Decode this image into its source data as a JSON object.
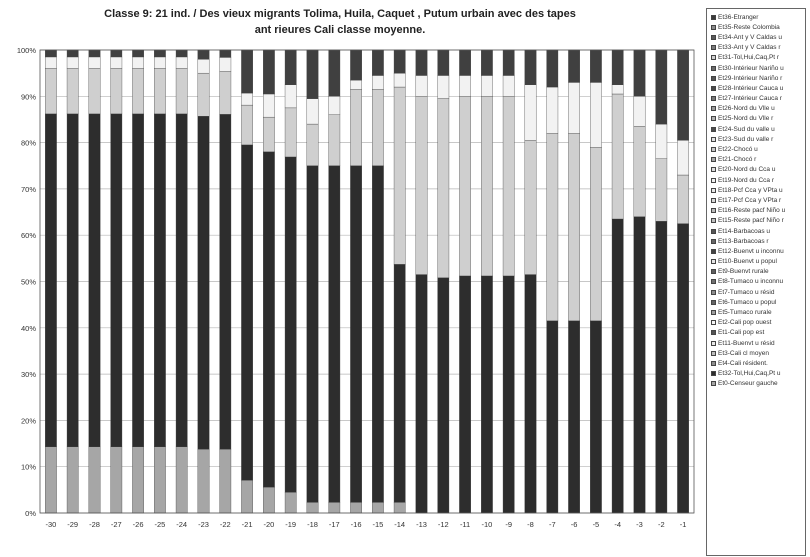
{
  "chart_data": {
    "type": "bar",
    "stacked": true,
    "normalized": true,
    "title_lines": [
      "Classe 9: 21 ind. / Des vieux migrants Tolima, Huila, Caquet , Putum urbain  avec des  tapes",
      "ant rieures   Cali classe moyenne."
    ],
    "xlabel": "",
    "ylabel": "",
    "yticks": [
      "0%",
      "10%",
      "20%",
      "30%",
      "40%",
      "50%",
      "60%",
      "70%",
      "80%",
      "90%",
      "100%"
    ],
    "ylim": [
      0,
      100
    ],
    "grid": true,
    "legend_position": "right",
    "categories": [
      "-30",
      "-29",
      "-28",
      "-27",
      "-26",
      "-25",
      "-24",
      "-23",
      "-22",
      "-21",
      "-20",
      "-19",
      "-18",
      "-17",
      "-16",
      "-15",
      "-14",
      "-13",
      "-12",
      "-11",
      "-10",
      "-9",
      "-8",
      "-7",
      "-6",
      "-5",
      "-4",
      "-3",
      "-2",
      "-1"
    ],
    "legend": [
      "Et36-Etranger",
      "Et35-Reste Colombia",
      "Et34-Ant y V Caldas u",
      "Et33-Ant y V Caldas r",
      "Et31-Tol,Hui,Caq,Pt r",
      "Et30-Intérieur Nariño u",
      "Et29-Intérieur Nariño r",
      "Et28-Intérieur Cauca u",
      "Et27-Intérieur Cauca r",
      "Et26-Nord du Vlle u",
      "Et25-Nord du Vlle r",
      "Et24-Sud du valle u",
      "Et23-Sud du valle r",
      "Et22-Chocó u",
      "Et21-Chocó r",
      "Et20-Nord du Cca u",
      "Et19-Nord du Cca r",
      "Et18-Pcf Cca y VPta u",
      "Et17-Pcf Cca y VPta r",
      "Et16-Reste pacf Niño u",
      "Et15-Reste pacf Niño r",
      "Et14-Barbacoas u",
      "Et13-Barbacoas r",
      "Et12-Buenvt u inconnu",
      "Et10-Buenvt u popul",
      "Et9-Buenvt rurale",
      "Et8-Tumaco u inconnu",
      "Et7-Tumaco u résid",
      "Et6-Tumaco u popul",
      "Et5-Tumaco rurale",
      "Et2-Cali pop ouest",
      "Et1-Cali pop est",
      "Et11-Buenvt u résid",
      "Et3-Cali cl moyen",
      "Et4-Cali résident.",
      "Et32-Tol,Hui,Caq,Pt u",
      "Et0-Censeur gauche"
    ],
    "segments_bottom_to_top": [
      "Et0-Censeur gauche",
      "Et32-Tol,Hui,Caq,Pt u",
      "Et31-Tol,Hui,Caq,Pt r",
      "Et35-Reste Colombia",
      "Et36-Etranger"
    ],
    "series": [
      {
        "name": "Et0-Censeur gauche",
        "values": [
          14.3,
          14.3,
          14.3,
          14.3,
          14.3,
          14.3,
          14.3,
          13.8,
          13.8,
          7.1,
          5.6,
          4.5,
          2.3,
          2.3,
          2.3,
          2.3,
          2.3,
          0,
          0,
          0,
          0,
          0,
          0,
          0,
          0,
          0,
          0,
          0,
          0,
          0
        ]
      },
      {
        "name": "Et32-Tol,Hui,Caq,Pt u",
        "values": [
          71.9,
          71.9,
          71.9,
          71.9,
          71.9,
          71.9,
          71.9,
          71.9,
          72.3,
          72.4,
          72.4,
          72.4,
          72.7,
          72.7,
          72.7,
          72.7,
          51.4,
          51.5,
          50.8,
          51.2,
          51.2,
          51.2,
          51.5,
          41.5,
          41.5,
          41.5,
          63.5,
          64.0,
          63.0,
          62.5
        ]
      },
      {
        "name": "Et31-Tol,Hui,Caq,Pt r",
        "values": [
          9.8,
          9.8,
          9.8,
          9.8,
          9.8,
          9.8,
          9.8,
          9.3,
          9.3,
          8.6,
          7.5,
          10.6,
          9.0,
          11.0,
          16.5,
          16.5,
          38.3,
          38.5,
          38.7,
          38.8,
          38.8,
          38.8,
          29.0,
          40.5,
          40.5,
          37.5,
          27.0,
          19.5,
          13.5,
          10.5
        ]
      },
      {
        "name": "Et35-Reste Colombia",
        "values": [
          2.5,
          2.5,
          2.5,
          2.5,
          2.5,
          2.5,
          2.5,
          3.0,
          3.0,
          2.6,
          5.0,
          5.0,
          5.5,
          4.0,
          2.0,
          3.0,
          3.0,
          4.5,
          5.0,
          4.5,
          4.5,
          4.5,
          12.0,
          10.0,
          11.0,
          14.0,
          2.0,
          6.5,
          7.5,
          7.5
        ]
      },
      {
        "name": "Et36-Etranger",
        "values": [
          1.5,
          1.5,
          1.5,
          1.5,
          1.5,
          1.5,
          1.5,
          2.0,
          1.6,
          9.3,
          9.5,
          7.5,
          10.5,
          10.0,
          6.5,
          5.5,
          5.0,
          5.5,
          5.5,
          5.5,
          5.5,
          5.5,
          7.5,
          8.0,
          7.0,
          7.0,
          7.5,
          10.0,
          16.0,
          19.5
        ]
      }
    ],
    "series_colors": {
      "Et0-Censeur gauche": "#a6a6a6",
      "Et32-Tol,Hui,Caq,Pt u": "#2d2d2d",
      "Et31-Tol,Hui,Caq,Pt r": "#cfcfcf",
      "Et35-Reste Colombia": "#f2f2f2",
      "Et36-Etranger": "#404040"
    },
    "legend_swatch_colors": [
      "#3a3a3a",
      "#8a8a8a",
      "#5a5a5a",
      "#7a7a7a",
      "#d0d0d0",
      "#6a6a6a",
      "#555555",
      "#4a4a4a",
      "#777777",
      "#9a9a9a",
      "#b0b0b0",
      "#4d4d4d",
      "#e0e0e0",
      "#c8c8c8",
      "#a8a8a8",
      "#dddddd",
      "#f0f0f0",
      "#e8e8e8",
      "#d8d8d8",
      "#bbbbbb",
      "#c0c0c0",
      "#555555",
      "#666666",
      "#444444",
      "#e5e5e5",
      "#5e5e5e",
      "#707070",
      "#8c8c8c",
      "#666666",
      "#9e9e9e",
      "#f5f5f5",
      "#555555",
      "#e8e8e8",
      "#bdbdbd",
      "#8f8f8f",
      "#2d2d2d",
      "#a6a6a6"
    ]
  }
}
